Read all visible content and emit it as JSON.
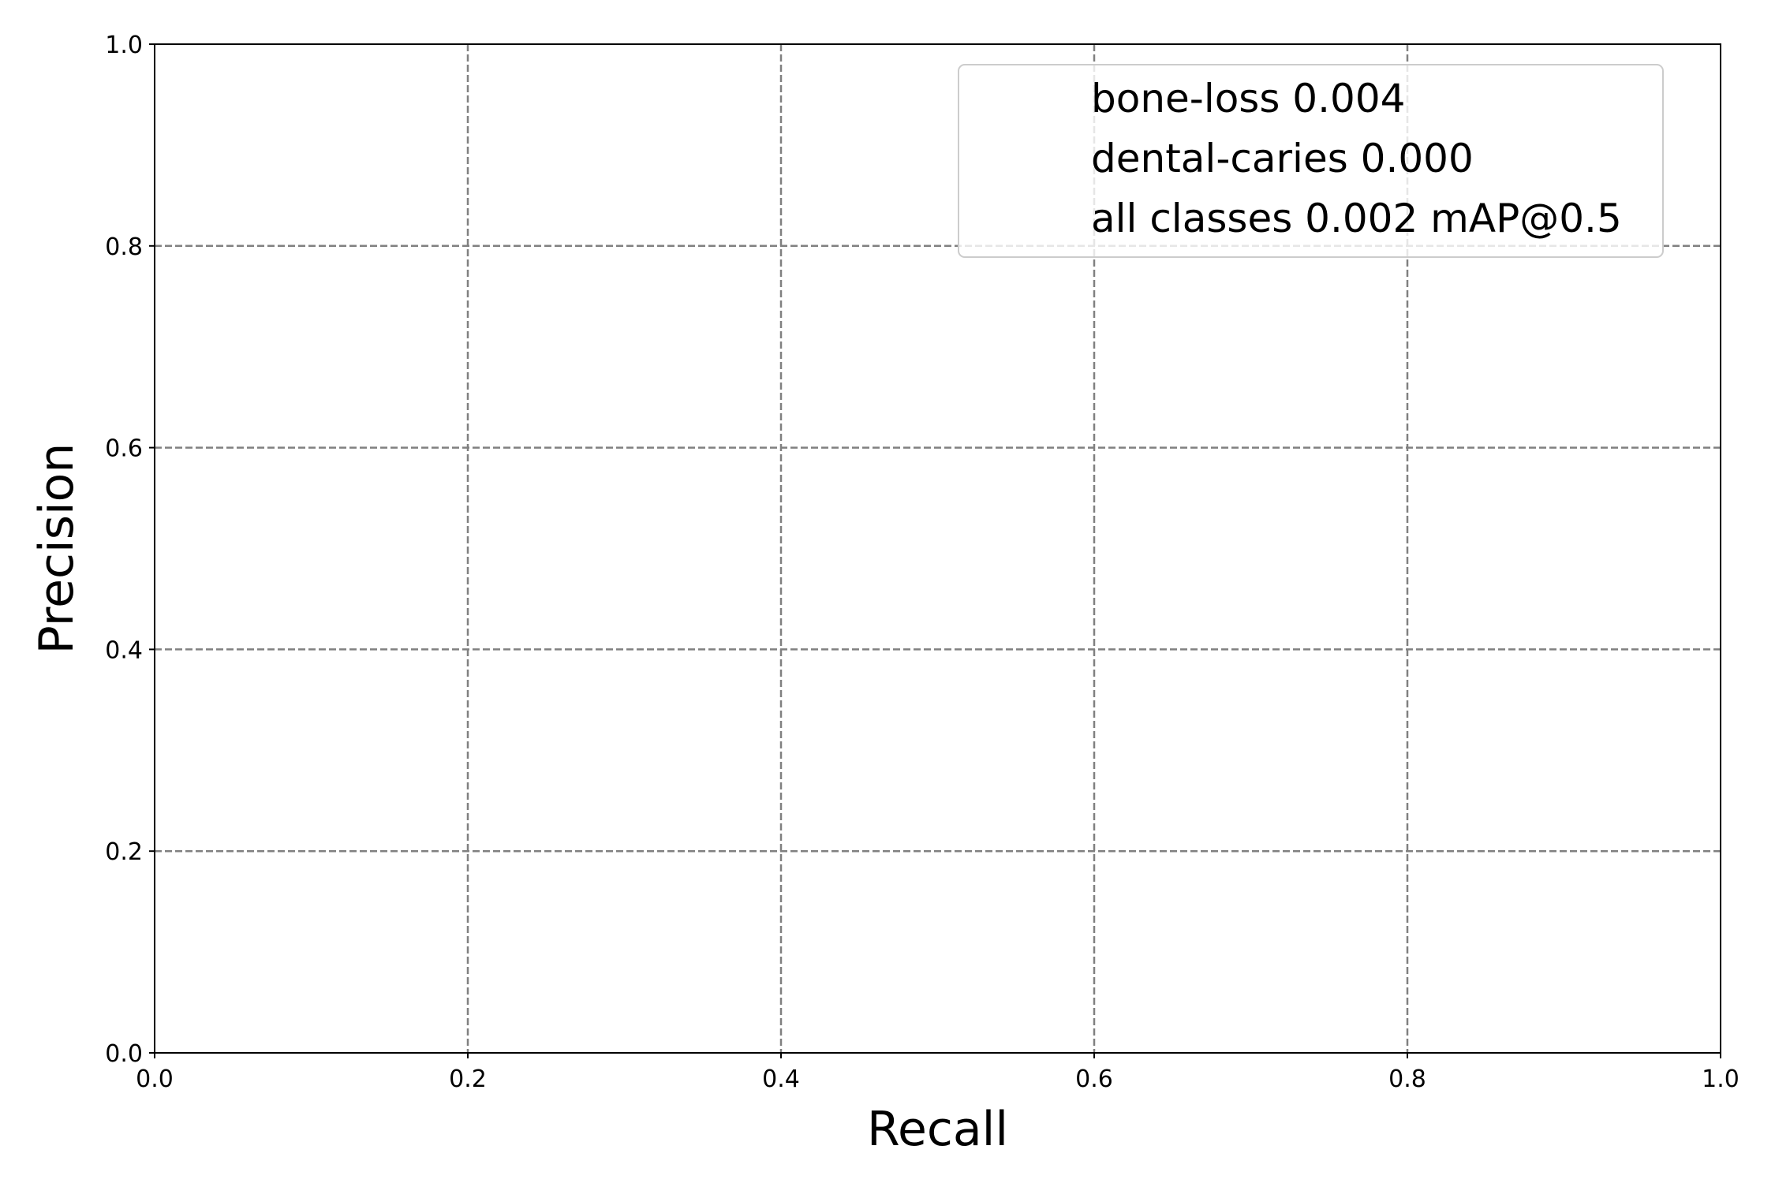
{
  "chart_data": {
    "type": "line",
    "xlabel": "Recall",
    "ylabel": "Precision",
    "xlim": [
      0,
      1
    ],
    "ylim": [
      0,
      1
    ],
    "xticks": [
      "0.0",
      "0.2",
      "0.4",
      "0.6",
      "0.8",
      "1.0"
    ],
    "yticks": [
      "0.0",
      "0.2",
      "0.4",
      "0.6",
      "0.8",
      "1.0"
    ],
    "grid": true,
    "grid_style": "dashed",
    "grid_color": "#808080",
    "legend_position": "upper-right",
    "legend": [
      "bone-loss 0.004",
      "dental-caries 0.000",
      "all classes 0.002 mAP@0.5"
    ],
    "series": [
      {
        "name": "bone-loss 0.004",
        "x": [],
        "y": []
      },
      {
        "name": "dental-caries 0.000",
        "x": [],
        "y": []
      },
      {
        "name": "all classes 0.002 mAP@0.5",
        "x": [],
        "y": []
      }
    ]
  }
}
